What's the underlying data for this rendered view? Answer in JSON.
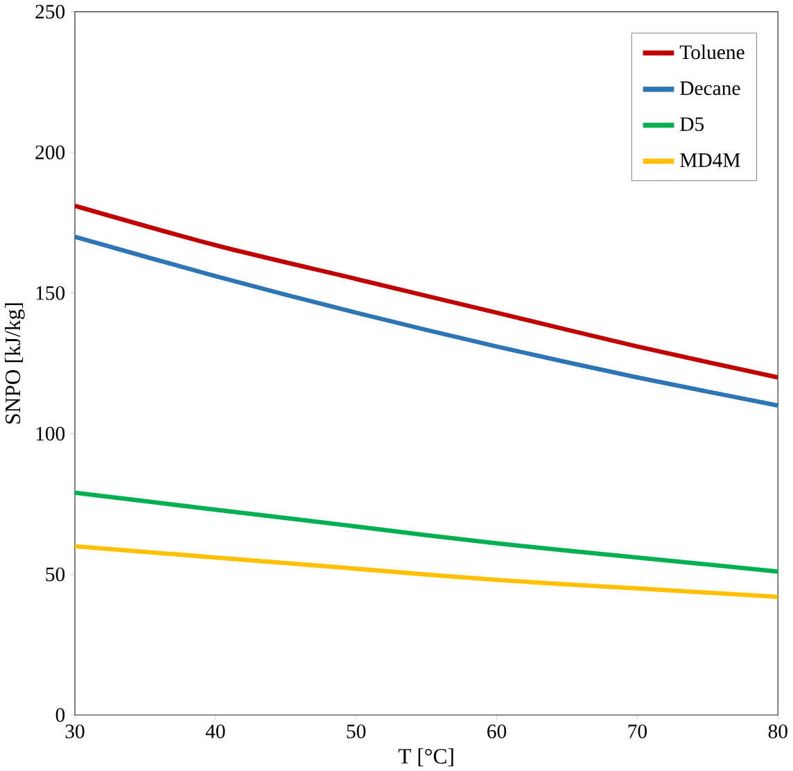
{
  "chart_data": {
    "type": "line",
    "xlabel": "T [°C]",
    "ylabel": "SNPO [kJ/kg]",
    "x": [
      30,
      40,
      50,
      60,
      70,
      80
    ],
    "series": [
      {
        "name": "Toluene",
        "color": "#c00000",
        "values": [
          181,
          167,
          155,
          143,
          131,
          120
        ]
      },
      {
        "name": "Decane",
        "color": "#2e75b6",
        "values": [
          170,
          156,
          143,
          131,
          120,
          110
        ]
      },
      {
        "name": "D5",
        "color": "#00b050",
        "values": [
          79,
          73,
          67,
          61,
          56,
          51
        ]
      },
      {
        "name": "MD4M",
        "color": "#ffc000",
        "values": [
          60,
          56,
          52,
          48,
          45,
          42
        ]
      }
    ],
    "xlim": [
      30,
      80
    ],
    "xticks": [
      30,
      40,
      50,
      60,
      70,
      80
    ],
    "ylim": [
      0,
      250
    ],
    "yticks": [
      0,
      50,
      100,
      150,
      200,
      250
    ],
    "grid": false,
    "legend": "top right",
    "marker": "none",
    "line_style": "solid"
  }
}
